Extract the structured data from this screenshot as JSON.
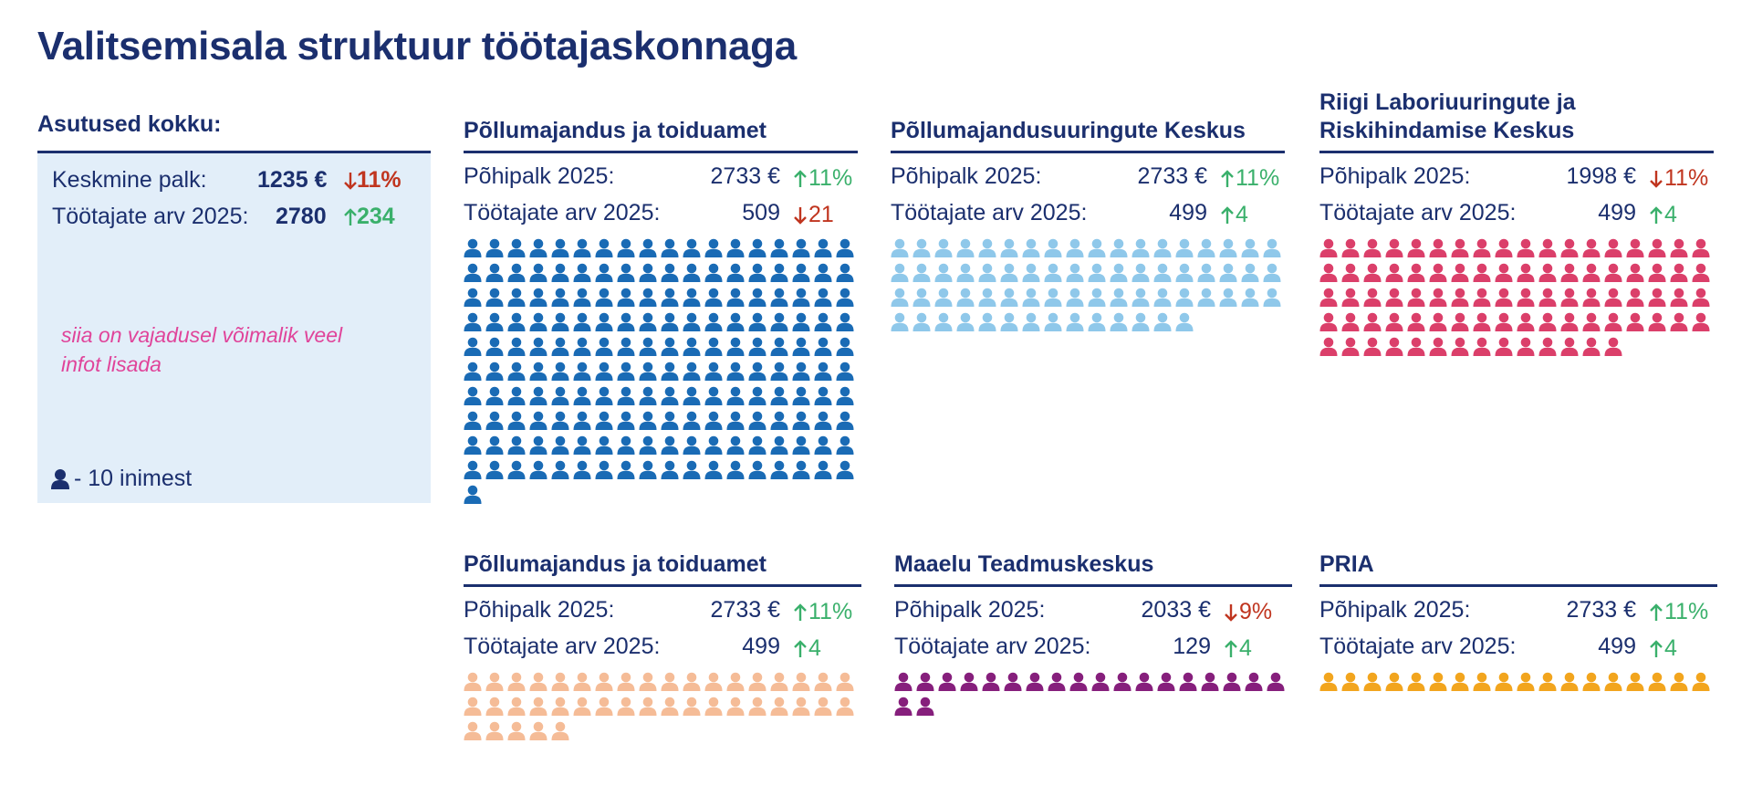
{
  "title": "Valitsemisala struktuur töötajaskonnaga",
  "summary": {
    "heading": "Asutused kokku:",
    "salary_label": "Keskmine palk:",
    "salary_value": "1235 €",
    "salary_change": "11%",
    "salary_direction": "down",
    "staff_label": "Töötajate arv 2025:",
    "staff_value": "2780",
    "staff_change": "234",
    "staff_direction": "up",
    "note": "siia on vajadusel võimalik veel infot lisada",
    "legend_text": "- 10 inimest",
    "legend_icon": "person-icon"
  },
  "colors": {
    "up": "#3ab06b",
    "down": "#c0351f",
    "navy": "#1b2f6e",
    "summary_bg": "#e2eef9",
    "note": "#e0449a"
  },
  "institutions": [
    {
      "name": "Põllumajandus ja toiduamet",
      "salary_label": "Põhipalk 2025:",
      "salary_value": "2733 €",
      "salary_change": "11%",
      "salary_direction": "up",
      "staff_label": "Töötajate arv 2025:",
      "staff_value": "509",
      "staff_change": "21",
      "staff_direction": "down",
      "icon_count": 181,
      "icon_color": "#1a6bb5"
    },
    {
      "name": "Põllumajandusuuringute Keskus",
      "salary_label": "Põhipalk 2025:",
      "salary_value": "2733 €",
      "salary_change": "11%",
      "salary_direction": "up",
      "staff_label": "Töötajate arv 2025:",
      "staff_value": "499",
      "staff_change": "4",
      "staff_direction": "up",
      "icon_count": 68,
      "icon_color": "#8fc8ea"
    },
    {
      "name": "Riigi Laboriuuringute ja Riskihindamise Keskus",
      "salary_label": "Põhipalk 2025:",
      "salary_value": "1998 €",
      "salary_change": "11%",
      "salary_direction": "down",
      "staff_label": "Töötajate arv 2025:",
      "staff_value": "499",
      "staff_change": "4",
      "staff_direction": "up",
      "icon_count": 86,
      "icon_color": "#db3f6a"
    },
    {
      "name": "Põllumajandus ja toiduamet",
      "salary_label": "Põhipalk 2025:",
      "salary_value": "2733 €",
      "salary_change": "11%",
      "salary_direction": "up",
      "staff_label": "Töötajate arv 2025:",
      "staff_value": "499",
      "staff_change": "4",
      "staff_direction": "up",
      "icon_count": 41,
      "icon_color": "#f5bc97"
    },
    {
      "name": "Maaelu Teadmuskeskus",
      "salary_label": "Põhipalk 2025:",
      "salary_value": "2033 €",
      "salary_change": "9%",
      "salary_direction": "down",
      "staff_label": "Töötajate arv 2025:",
      "staff_value": "129",
      "staff_change": "4",
      "staff_direction": "up",
      "icon_count": 20,
      "icon_color": "#861f7c"
    },
    {
      "name": "PRIA",
      "salary_label": "Põhipalk 2025:",
      "salary_value": "2733 €",
      "salary_change": "11%",
      "salary_direction": "up",
      "staff_label": "Töötajate arv 2025:",
      "staff_value": "499",
      "staff_change": "4",
      "staff_direction": "up",
      "icon_count": 18,
      "icon_color": "#f2a51e"
    }
  ]
}
